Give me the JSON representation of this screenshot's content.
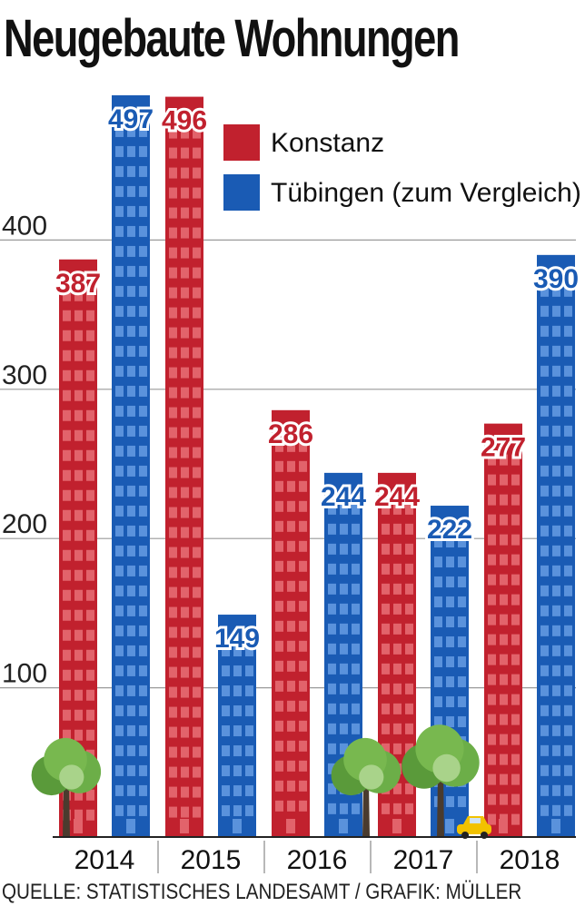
{
  "chart_data": {
    "type": "bar",
    "title": "Neugebaute Wohnungen",
    "categories": [
      "2014",
      "2015",
      "2016",
      "2017",
      "2018"
    ],
    "series": [
      {
        "name": "Konstanz",
        "color": "#c1212e",
        "values": [
          387,
          496,
          286,
          244,
          277
        ]
      },
      {
        "name": "Tübingen (zum Vergleich)",
        "color": "#1a5bb4",
        "values": [
          497,
          149,
          244,
          222,
          390
        ]
      }
    ],
    "ylim": [
      0,
      500
    ],
    "yticks": [
      100,
      200,
      300,
      400
    ],
    "grid": true,
    "legend_position": "top-right",
    "source": "QUELLE: STATISTISCHES LANDESAMT / GRAFIK: MÜLLER"
  }
}
